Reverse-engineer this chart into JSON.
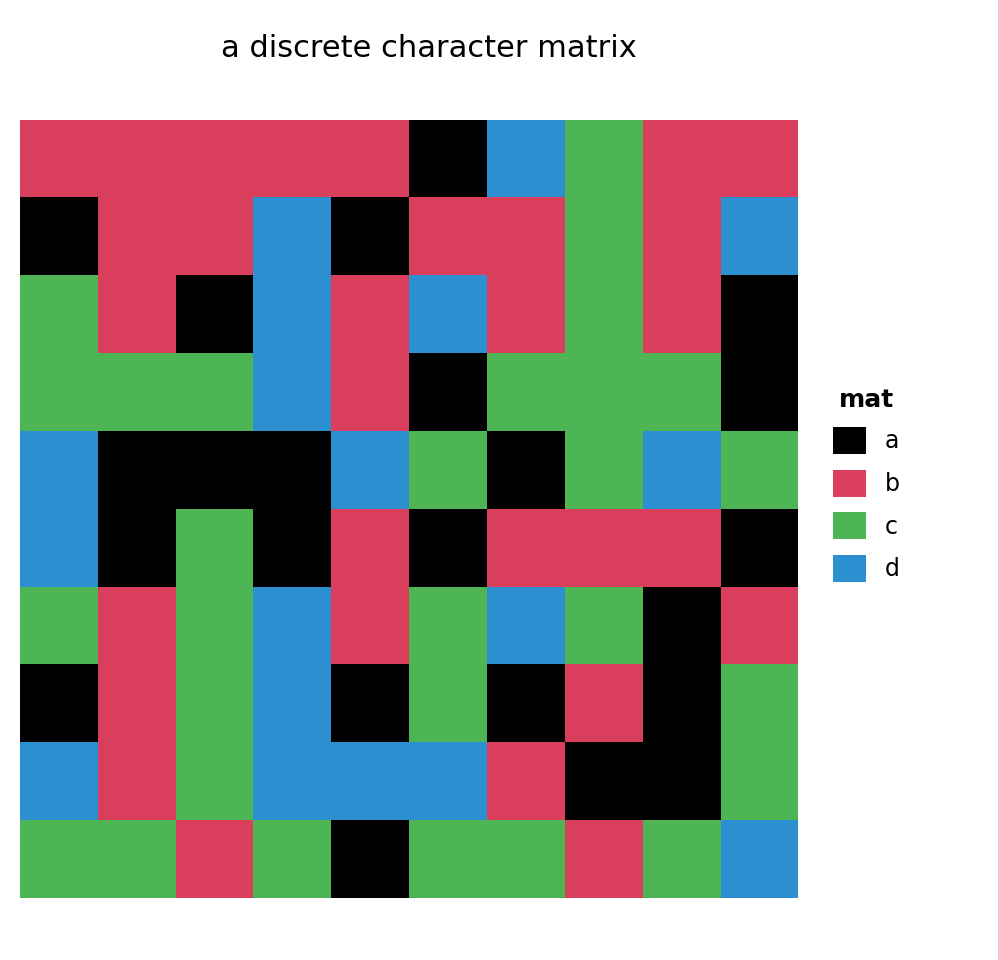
{
  "title": "a discrete character matrix",
  "title_fontsize": 22,
  "nrows": 10,
  "ncols": 10,
  "color_map": {
    "a": "#000000",
    "b": "#D93F5C",
    "c": "#4DB553",
    "d": "#2B8FD0"
  },
  "legend_title": "mat",
  "legend_labels": [
    "a",
    "b",
    "c",
    "d"
  ],
  "legend_colors": [
    "#000000",
    "#D93F5C",
    "#4DB553",
    "#2B8FD0"
  ],
  "matrix": [
    [
      "b",
      "b",
      "b",
      "b",
      "b",
      "a",
      "d",
      "c",
      "b",
      "b"
    ],
    [
      "a",
      "b",
      "b",
      "d",
      "a",
      "b",
      "b",
      "c",
      "b",
      "d"
    ],
    [
      "c",
      "b",
      "a",
      "d",
      "b",
      "d",
      "b",
      "c",
      "b",
      "a"
    ],
    [
      "c",
      "c",
      "c",
      "d",
      "b",
      "a",
      "c",
      "c",
      "c",
      "a"
    ],
    [
      "d",
      "a",
      "a",
      "a",
      "d",
      "c",
      "a",
      "c",
      "d",
      "c"
    ],
    [
      "d",
      "a",
      "c",
      "a",
      "b",
      "a",
      "b",
      "b",
      "b",
      "a"
    ],
    [
      "c",
      "b",
      "c",
      "d",
      "b",
      "c",
      "d",
      "c",
      "a",
      "b"
    ],
    [
      "a",
      "b",
      "c",
      "d",
      "a",
      "c",
      "a",
      "b",
      "a",
      "c"
    ],
    [
      "d",
      "b",
      "c",
      "d",
      "d",
      "d",
      "b",
      "a",
      "a",
      "c"
    ],
    [
      "c",
      "c",
      "b",
      "c",
      "a",
      "c",
      "c",
      "b",
      "c",
      "d"
    ]
  ],
  "fig_width": 9.98,
  "fig_height": 9.6,
  "dpi": 100,
  "background_color": "#ffffff",
  "cell_edge_color": "none",
  "legend_title_fontsize": 18,
  "legend_fontsize": 17
}
